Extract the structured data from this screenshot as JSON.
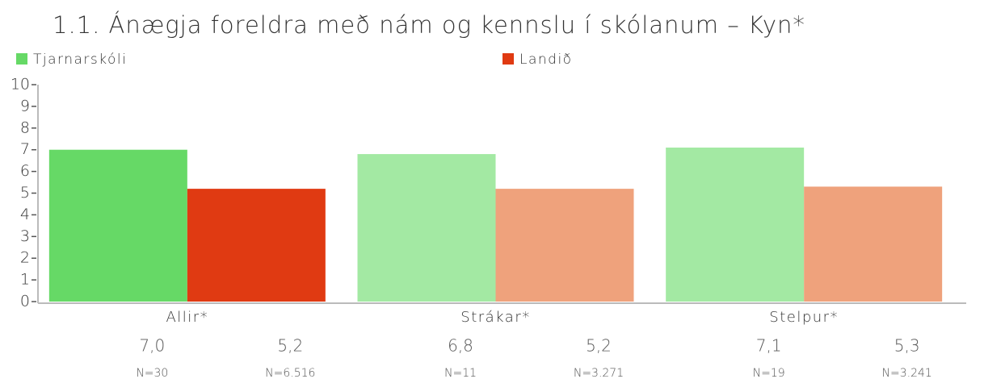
{
  "chart_data": {
    "type": "bar",
    "title": "1.1. Ánægja foreldra með nám og kennslu í skólanum – Kyn*",
    "categories": [
      "Allir*",
      "Strákar*",
      "Stelpur*"
    ],
    "series": [
      {
        "name": "Tjarnarskóli",
        "color": "#66d966",
        "colors": [
          "#66d966",
          "#a3e9a3",
          "#a3e9a3"
        ],
        "values": [
          7.0,
          6.8,
          7.1
        ],
        "value_labels": [
          "7,0",
          "6,8",
          "7,1"
        ],
        "n_labels": [
          "N=30",
          "N=11",
          "N=19"
        ]
      },
      {
        "name": "Landið",
        "color": "#e03a12",
        "colors": [
          "#e03a12",
          "#efa27c",
          "#efa27c"
        ],
        "values": [
          5.2,
          5.2,
          5.3
        ],
        "value_labels": [
          "5,2",
          "5,2",
          "5,3"
        ],
        "n_labels": [
          "N=6.516",
          "N=3.271",
          "N=3.241"
        ]
      }
    ],
    "ylim": [
      0,
      10
    ],
    "yticks": [
      0,
      1,
      2,
      3,
      4,
      5,
      6,
      7,
      8,
      9,
      10
    ]
  }
}
